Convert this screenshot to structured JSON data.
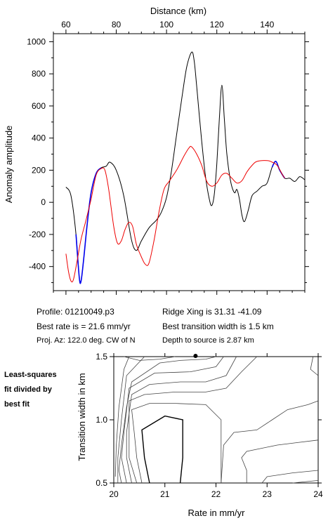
{
  "chart_data": [
    {
      "type": "line",
      "title": "",
      "xlabel": "Distance (km)",
      "ylabel": "Anomaly amplitude",
      "xlim": [
        55,
        155
      ],
      "ylim": [
        -550,
        1050
      ],
      "xticks": [
        60,
        80,
        100,
        120,
        140
      ],
      "yticks": [
        -400,
        -200,
        0,
        200,
        400,
        600,
        800,
        1000
      ],
      "grid": false,
      "series": [
        {
          "color": "#000000",
          "points": [
            [
              60,
              95
            ],
            [
              62,
              40
            ],
            [
              64,
              -200
            ],
            [
              65.3,
              -470
            ],
            [
              66,
              -490
            ],
            [
              67,
              -360
            ],
            [
              68.5,
              -130
            ],
            [
              70,
              60
            ],
            [
              72,
              180
            ],
            [
              74,
              215
            ],
            [
              76,
              225
            ],
            [
              77.5,
              250
            ],
            [
              80,
              200
            ],
            [
              83,
              40
            ],
            [
              86,
              -230
            ],
            [
              88,
              -300
            ],
            [
              90,
              -240
            ],
            [
              93,
              -160
            ],
            [
              96,
              -110
            ],
            [
              98,
              -60
            ],
            [
              100,
              30
            ],
            [
              102,
              200
            ],
            [
              104,
              420
            ],
            [
              106,
              640
            ],
            [
              108,
              840
            ],
            [
              110,
              935
            ],
            [
              111,
              880
            ],
            [
              112,
              720
            ],
            [
              114,
              380
            ],
            [
              115.5,
              160
            ],
            [
              117,
              20
            ],
            [
              118,
              -20
            ],
            [
              119,
              50
            ],
            [
              120,
              240
            ],
            [
              121,
              520
            ],
            [
              122,
              730
            ],
            [
              123,
              520
            ],
            [
              124,
              300
            ],
            [
              125.5,
              130
            ],
            [
              127,
              60
            ],
            [
              128,
              80
            ],
            [
              129,
              20
            ],
            [
              130,
              -80
            ],
            [
              131,
              -120
            ],
            [
              132.5,
              -50
            ],
            [
              134,
              40
            ],
            [
              136,
              70
            ],
            [
              138,
              100
            ],
            [
              140,
              120
            ],
            [
              142,
              220
            ],
            [
              143.5,
              255
            ],
            [
              145,
              200
            ],
            [
              147,
              150
            ],
            [
              149,
              150
            ],
            [
              151,
              130
            ],
            [
              153,
              160
            ],
            [
              155,
              140
            ]
          ]
        },
        {
          "color": "#0000ee",
          "points": [
            [
              64,
              -200
            ],
            [
              65.3,
              -470
            ],
            [
              66,
              -490
            ],
            [
              67,
              -360
            ],
            [
              68.5,
              -130
            ],
            [
              70,
              60
            ],
            [
              72,
              180
            ],
            [
              74,
              215
            ]
          ]
        },
        {
          "color": "#0000ee",
          "points": [
            [
              142,
              220
            ],
            [
              143.5,
              255
            ],
            [
              145,
              200
            ],
            [
              147,
              150
            ]
          ]
        },
        {
          "color": "#ee0000",
          "points": [
            [
              60,
              -320
            ],
            [
              61,
              -430
            ],
            [
              62,
              -490
            ],
            [
              63,
              -480
            ],
            [
              64.5,
              -360
            ],
            [
              66,
              -230
            ],
            [
              68,
              -110
            ],
            [
              70,
              20
            ],
            [
              72,
              170
            ],
            [
              74,
              210
            ],
            [
              75.5,
              200
            ],
            [
              77,
              80
            ],
            [
              79,
              -150
            ],
            [
              80.5,
              -255
            ],
            [
              82,
              -240
            ],
            [
              83.5,
              -170
            ],
            [
              85,
              -125
            ],
            [
              86.5,
              -150
            ],
            [
              88,
              -260
            ],
            [
              90,
              -340
            ],
            [
              91.5,
              -385
            ],
            [
              93,
              -380
            ],
            [
              95,
              -240
            ],
            [
              97,
              -60
            ],
            [
              99,
              80
            ],
            [
              101,
              130
            ],
            [
              104,
              200
            ],
            [
              107,
              290
            ],
            [
              109,
              340
            ],
            [
              110,
              345
            ],
            [
              112,
              300
            ],
            [
              114,
              230
            ],
            [
              116,
              130
            ],
            [
              118,
              100
            ],
            [
              120,
              120
            ],
            [
              122,
              170
            ],
            [
              124,
              180
            ],
            [
              126,
              150
            ],
            [
              128,
              120
            ],
            [
              130,
              135
            ],
            [
              132,
              190
            ],
            [
              134,
              230
            ],
            [
              136,
              255
            ],
            [
              140,
              260
            ],
            [
              142,
              250
            ],
            [
              144,
              230
            ],
            [
              146,
              175
            ],
            [
              147,
              150
            ]
          ]
        }
      ]
    },
    {
      "type": "contour",
      "title": "",
      "xlabel": "Rate in mm/yr",
      "ylabel": "Transition width in km",
      "xlim": [
        20,
        24
      ],
      "ylim": [
        0.5,
        1.5
      ],
      "xticks": [
        20,
        21,
        22,
        23,
        24
      ],
      "yticks": [
        0.5,
        1.0,
        1.5
      ],
      "xtick_labels": [
        "20",
        "21",
        "22",
        "23",
        "24"
      ],
      "ytick_labels": [
        "0.5",
        "1.0",
        "1.5"
      ],
      "best_fit_point": {
        "x": 21.6,
        "y": 1.5
      },
      "contours": [
        {
          "points": [
            [
              21.3,
              0.5
            ],
            [
              21.35,
              0.7
            ],
            [
              21.35,
              1.0
            ],
            [
              21.0,
              1.03
            ],
            [
              20.55,
              0.92
            ],
            [
              20.6,
              0.7
            ],
            [
              20.7,
              0.5
            ]
          ]
        },
        {
          "points": [
            [
              20.55,
              0.5
            ],
            [
              20.45,
              0.7
            ],
            [
              20.4,
              0.9
            ],
            [
              20.35,
              1.08
            ],
            [
              20.7,
              1.13
            ],
            [
              21.2,
              1.13
            ],
            [
              21.8,
              1.12
            ],
            [
              22.1,
              1.0
            ],
            [
              22.1,
              0.8
            ],
            [
              22.1,
              0.5
            ]
          ]
        },
        {
          "points": [
            [
              20.45,
              0.5
            ],
            [
              20.3,
              0.7
            ],
            [
              20.3,
              0.9
            ],
            [
              20.3,
              1.15
            ],
            [
              20.6,
              1.2
            ],
            [
              21.2,
              1.22
            ],
            [
              21.8,
              1.22
            ],
            [
              22.2,
              1.25
            ],
            [
              22.5,
              1.38
            ],
            [
              22.8,
              1.5
            ]
          ]
        },
        {
          "points": [
            [
              20.35,
              0.5
            ],
            [
              20.25,
              0.7
            ],
            [
              20.25,
              0.9
            ],
            [
              20.35,
              1.2
            ],
            [
              20.7,
              1.28
            ],
            [
              21.3,
              1.3
            ],
            [
              21.8,
              1.3
            ],
            [
              22.2,
              1.35
            ],
            [
              22.4,
              1.5
            ]
          ]
        },
        {
          "points": [
            [
              20.25,
              0.5
            ],
            [
              20.15,
              0.7
            ],
            [
              20.2,
              0.9
            ],
            [
              20.3,
              1.25
            ],
            [
              20.8,
              1.37
            ],
            [
              21.5,
              1.38
            ],
            [
              22.0,
              1.42
            ],
            [
              22.15,
              1.5
            ]
          ]
        },
        {
          "points": [
            [
              20.15,
              0.5
            ],
            [
              20.1,
              0.6
            ],
            [
              20.15,
              0.8
            ],
            [
              20.25,
              1.1
            ],
            [
              20.35,
              1.3
            ],
            [
              20.9,
              1.45
            ],
            [
              21.3,
              1.47
            ],
            [
              21.8,
              1.48
            ],
            [
              22.0,
              1.5
            ]
          ]
        },
        {
          "points": [
            [
              20.08,
              0.5
            ],
            [
              20.08,
              0.7
            ],
            [
              20.15,
              1.0
            ],
            [
              20.25,
              1.35
            ],
            [
              20.6,
              1.5
            ]
          ]
        },
        {
          "points": [
            [
              20.03,
              0.55
            ],
            [
              20.05,
              0.8
            ],
            [
              20.1,
              1.1
            ],
            [
              20.2,
              1.4
            ],
            [
              20.3,
              1.5
            ]
          ]
        },
        {
          "points": [
            [
              22.1,
              0.5
            ],
            [
              22.15,
              0.8
            ],
            [
              22.35,
              0.9
            ],
            [
              22.8,
              0.92
            ],
            [
              23.1,
              1.0
            ],
            [
              23.4,
              1.08
            ],
            [
              23.8,
              1.12
            ],
            [
              24.0,
              1.15
            ]
          ]
        },
        {
          "points": [
            [
              22.9,
              0.5
            ],
            [
              23.0,
              0.55
            ],
            [
              23.5,
              0.58
            ],
            [
              24.0,
              0.6
            ]
          ]
        },
        {
          "points": [
            [
              23.5,
              0.5
            ],
            [
              24.0,
              0.52
            ]
          ]
        },
        {
          "points": [
            [
              22.6,
              0.5
            ],
            [
              22.6,
              0.6
            ],
            [
              22.5,
              0.7
            ],
            [
              22.6,
              0.75
            ],
            [
              23.2,
              0.8
            ],
            [
              23.6,
              0.82
            ],
            [
              24.0,
              0.84
            ]
          ]
        },
        {
          "points": [
            [
              23.9,
              1.5
            ],
            [
              23.85,
              1.4
            ],
            [
              24.0,
              1.35
            ]
          ]
        },
        {
          "points": [
            [
              20.2,
              1.5
            ],
            [
              20.5,
              1.47
            ],
            [
              20.9,
              1.48
            ],
            [
              21.2,
              1.5
            ]
          ]
        }
      ]
    }
  ],
  "info": {
    "profile": "Profile: 01210049.p3",
    "best_rate": "Best rate is = 21.6 mm/yr",
    "proj_az": "Proj. Az: 122.0 deg. CW of N",
    "ridge_xing": "Ridge Xing is 31.31 -41.09",
    "best_width": "Best transition width is 1.5 km",
    "depth": "Depth to source is   2.87 km"
  },
  "side_label": [
    "Least-squares",
    "fit divided by",
    "best fit"
  ]
}
